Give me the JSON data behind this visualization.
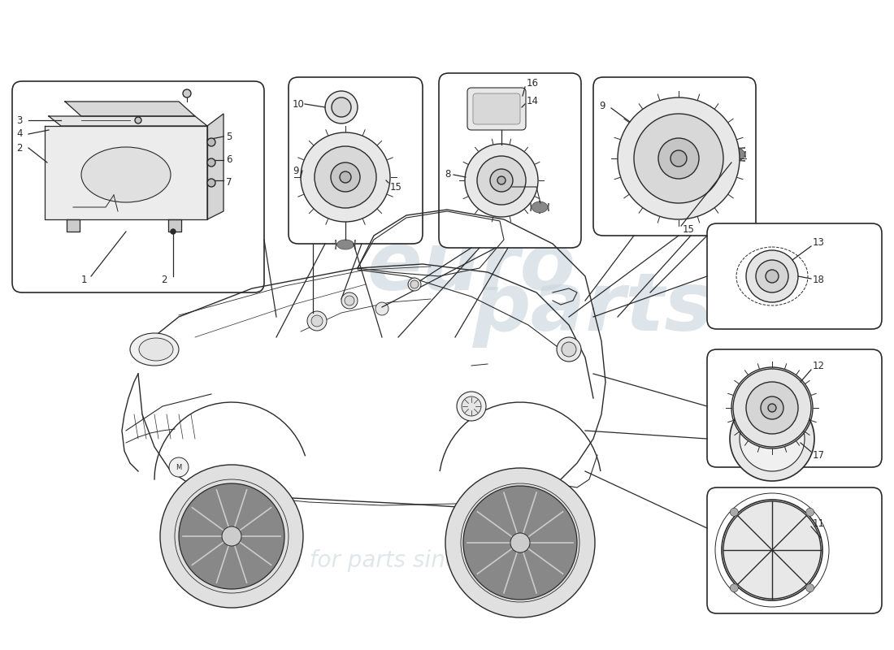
{
  "bg_color": "#ffffff",
  "line_color": "#2a2a2a",
  "box_bg": "#ffffff",
  "watermark_color1": "#c8d4dc",
  "watermark_color2": "#d4dde2",
  "wm1": "euro parts",
  "wm2": "a passion for parts since 1985",
  "labels": {
    "box1": [
      "3",
      "4",
      "2",
      "5",
      "6",
      "7",
      "2",
      "1"
    ],
    "box2": [
      "10",
      "9",
      "15"
    ],
    "box3": [
      "16",
      "14",
      "8"
    ],
    "box4": [
      "9",
      "15"
    ],
    "box5": [
      "13",
      "18"
    ],
    "box6": [
      "12",
      "17"
    ],
    "box7": [
      "11"
    ]
  }
}
